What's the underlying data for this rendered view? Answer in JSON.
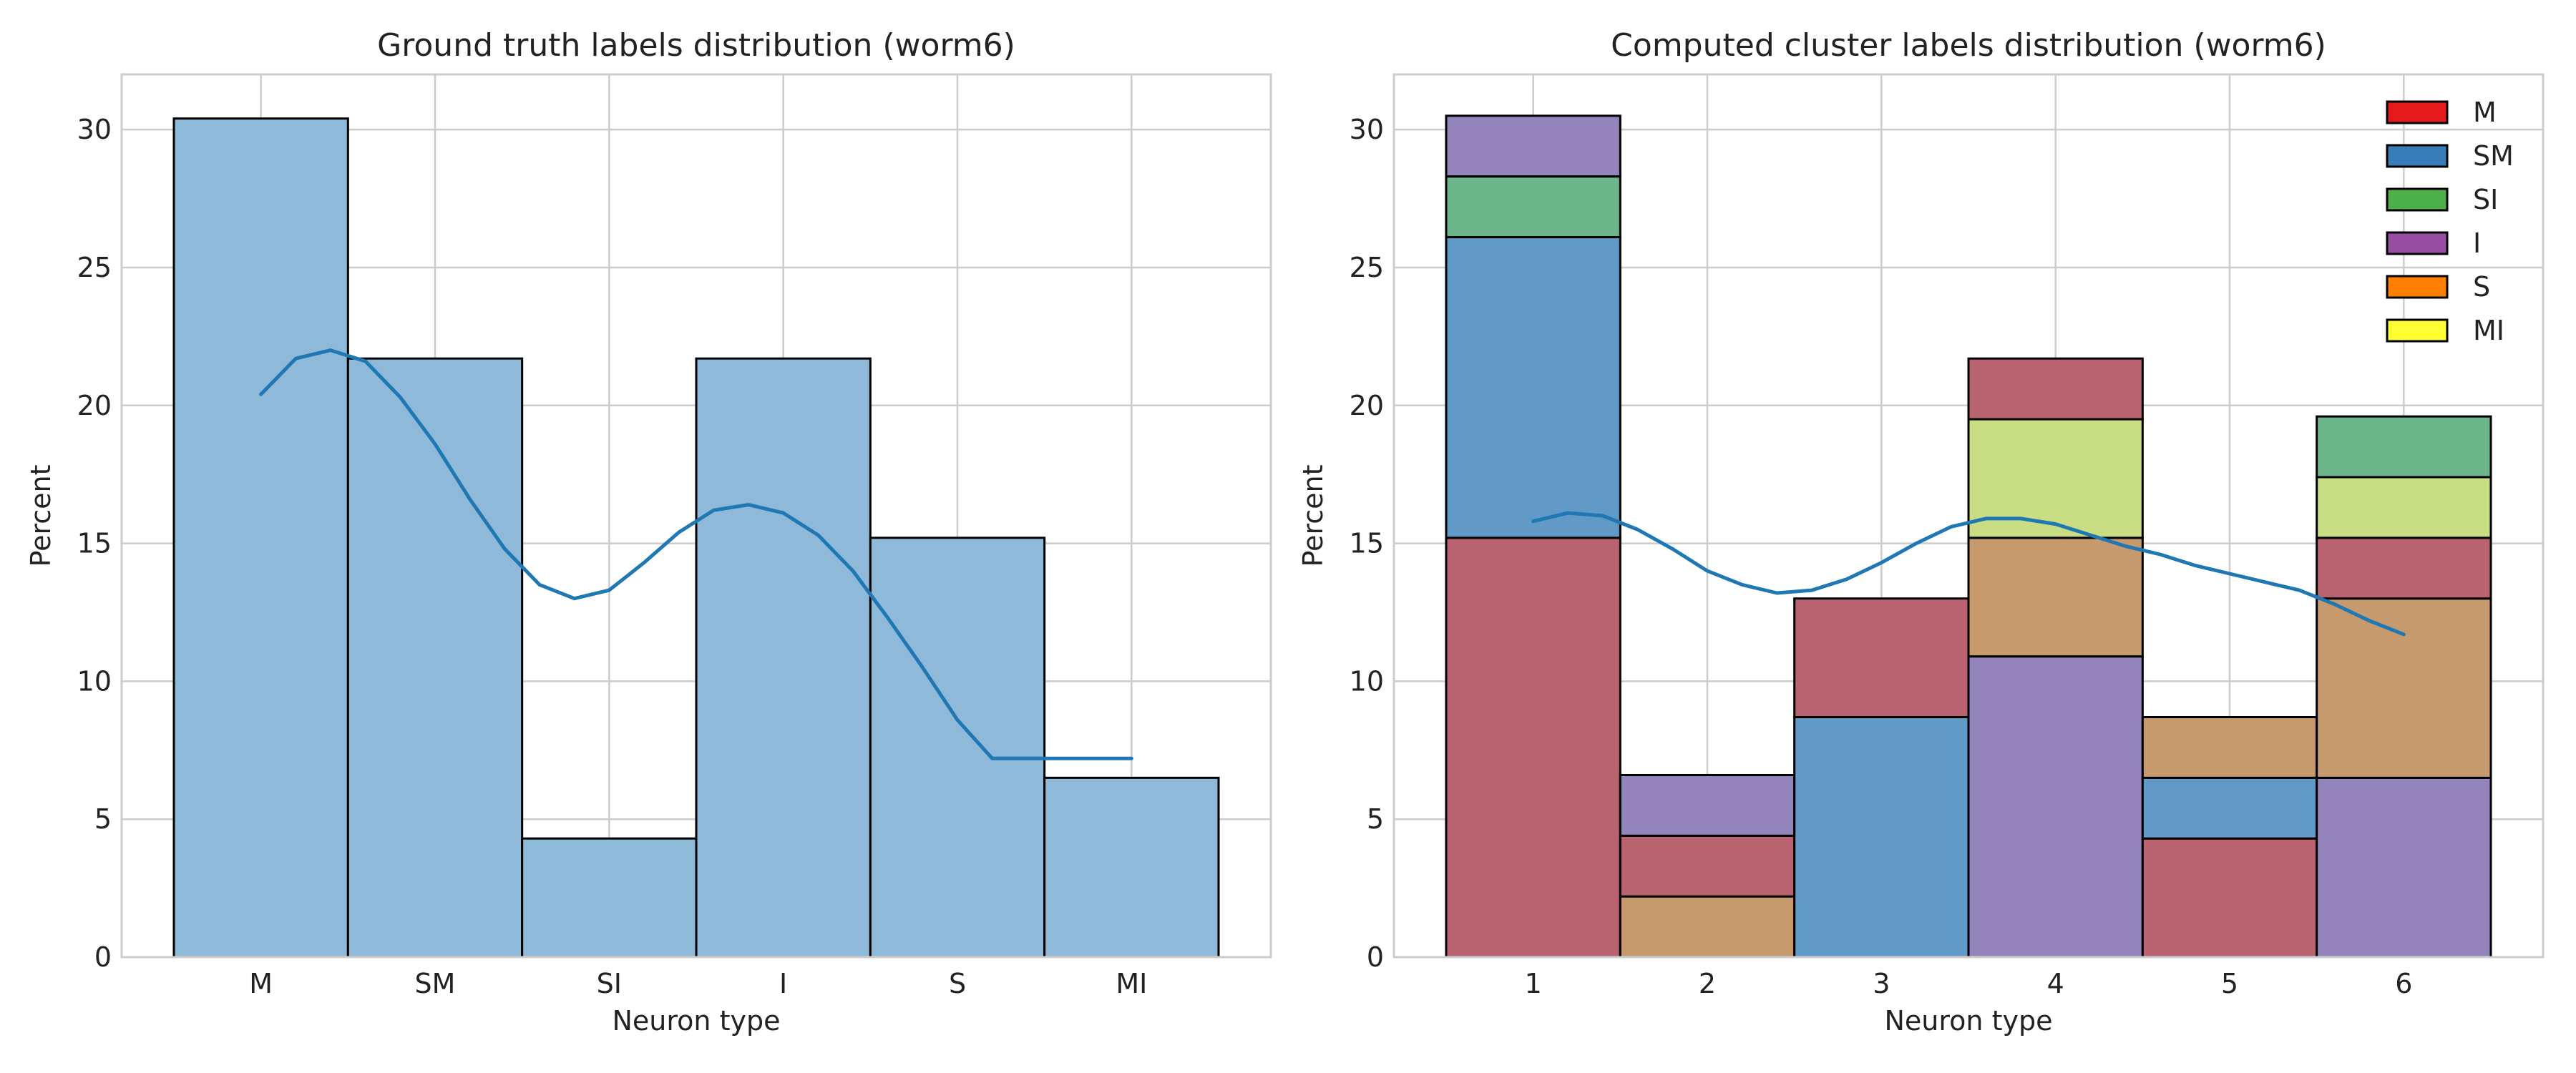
{
  "chart_data": [
    {
      "type": "bar",
      "title": "Ground truth labels distribution (worm6)",
      "xlabel": "Neuron type",
      "ylabel": "Percent",
      "ylim": [
        0,
        32
      ],
      "yticks": [
        0,
        5,
        10,
        15,
        20,
        25,
        30
      ],
      "categories": [
        "M",
        "SM",
        "SI",
        "I",
        "S",
        "MI"
      ],
      "values": [
        30.4,
        21.7,
        4.3,
        21.7,
        15.2,
        6.5
      ],
      "bar_color": "#8fb9d9",
      "kde": {
        "color": "#1f77b4",
        "x": [
          0.0,
          0.2,
          0.4,
          0.6,
          0.8,
          1.0,
          1.2,
          1.4,
          1.6,
          1.8,
          2.0,
          2.2,
          2.4,
          2.6,
          2.8,
          3.0,
          3.2,
          3.4,
          3.6,
          3.8,
          4.0,
          4.2,
          4.4,
          4.6,
          4.8,
          5.0
        ],
        "y": [
          20.4,
          21.7,
          22.0,
          21.6,
          20.3,
          18.6,
          16.6,
          14.8,
          13.5,
          13.0,
          13.3,
          14.3,
          15.4,
          16.2,
          16.4,
          16.1,
          15.3,
          14.0,
          12.3,
          10.5,
          8.6,
          7.2,
          7.2,
          7.2,
          7.2,
          7.2
        ]
      },
      "grid": true
    },
    {
      "type": "bar",
      "stacked": true,
      "title": "Computed cluster labels distribution (worm6)",
      "xlabel": "Neuron type",
      "ylabel": "Percent",
      "ylim": [
        0,
        32
      ],
      "yticks": [
        0,
        5,
        10,
        15,
        20,
        25,
        30
      ],
      "categories": [
        "1",
        "2",
        "3",
        "4",
        "5",
        "6"
      ],
      "legend": {
        "placement": "top-right"
      },
      "series": [
        {
          "name": "M",
          "color": "#e41a1c",
          "values": [
            0,
            0,
            0,
            0,
            0,
            0
          ]
        },
        {
          "name": "SM",
          "color": "#377eb8",
          "values": [
            0,
            0,
            0,
            0,
            0,
            0
          ]
        },
        {
          "name": "SI",
          "color": "#4daf4a",
          "values": [
            0,
            0,
            0,
            0,
            0,
            0
          ]
        },
        {
          "name": "I",
          "color": "#984ea3",
          "values": [
            0,
            0,
            0,
            0,
            0,
            0
          ]
        },
        {
          "name": "S",
          "color": "#ff7f00",
          "values": [
            0,
            0,
            0,
            0,
            0,
            0
          ]
        },
        {
          "name": "MI",
          "color": "#ffff33",
          "values": [
            0,
            0,
            0,
            0,
            0,
            0
          ]
        }
      ],
      "stack_segments": [
        [
          {
            "color": "#b8636f",
            "value": 15.2
          },
          {
            "color": "#6199c7",
            "value": 10.9
          },
          {
            "color": "#6db68b",
            "value": 2.2
          },
          {
            "color": "#9384bb",
            "value": 2.2
          }
        ],
        [
          {
            "color": "#c69a6d",
            "value": 2.2
          },
          {
            "color": "#b8636f",
            "value": 2.2
          },
          {
            "color": "#9384bb",
            "value": 2.2
          }
        ],
        [
          {
            "color": "#6199c7",
            "value": 8.7
          },
          {
            "color": "#b8636f",
            "value": 4.3
          }
        ],
        [
          {
            "color": "#9384bb",
            "value": 10.9
          },
          {
            "color": "#c69a6d",
            "value": 4.3
          },
          {
            "color": "#c8dd84",
            "value": 4.3
          },
          {
            "color": "#b8636f",
            "value": 2.2
          }
        ],
        [
          {
            "color": "#b8636f",
            "value": 4.3
          },
          {
            "color": "#6199c7",
            "value": 2.2
          },
          {
            "color": "#c69a6d",
            "value": 2.2
          }
        ],
        [
          {
            "color": "#9384bb",
            "value": 6.5
          },
          {
            "color": "#c69a6d",
            "value": 6.5
          },
          {
            "color": "#b8636f",
            "value": 2.2
          },
          {
            "color": "#c8dd84",
            "value": 2.2
          },
          {
            "color": "#6db68b",
            "value": 2.2
          }
        ]
      ],
      "kde": {
        "color": "#1f77b4",
        "x": [
          0.0,
          0.2,
          0.4,
          0.6,
          0.8,
          1.0,
          1.2,
          1.4,
          1.6,
          1.8,
          2.0,
          2.2,
          2.4,
          2.6,
          2.8,
          3.0,
          3.2,
          3.4,
          3.6,
          3.8,
          4.0,
          4.2,
          4.4,
          4.6,
          4.8,
          5.0
        ],
        "y": [
          15.8,
          16.1,
          16.0,
          15.5,
          14.8,
          14.0,
          13.5,
          13.2,
          13.3,
          13.7,
          14.3,
          15.0,
          15.6,
          15.9,
          15.9,
          15.7,
          15.3,
          14.9,
          14.6,
          14.2,
          13.9,
          13.6,
          13.3,
          12.8,
          12.2,
          11.7
        ]
      },
      "grid": true
    }
  ]
}
